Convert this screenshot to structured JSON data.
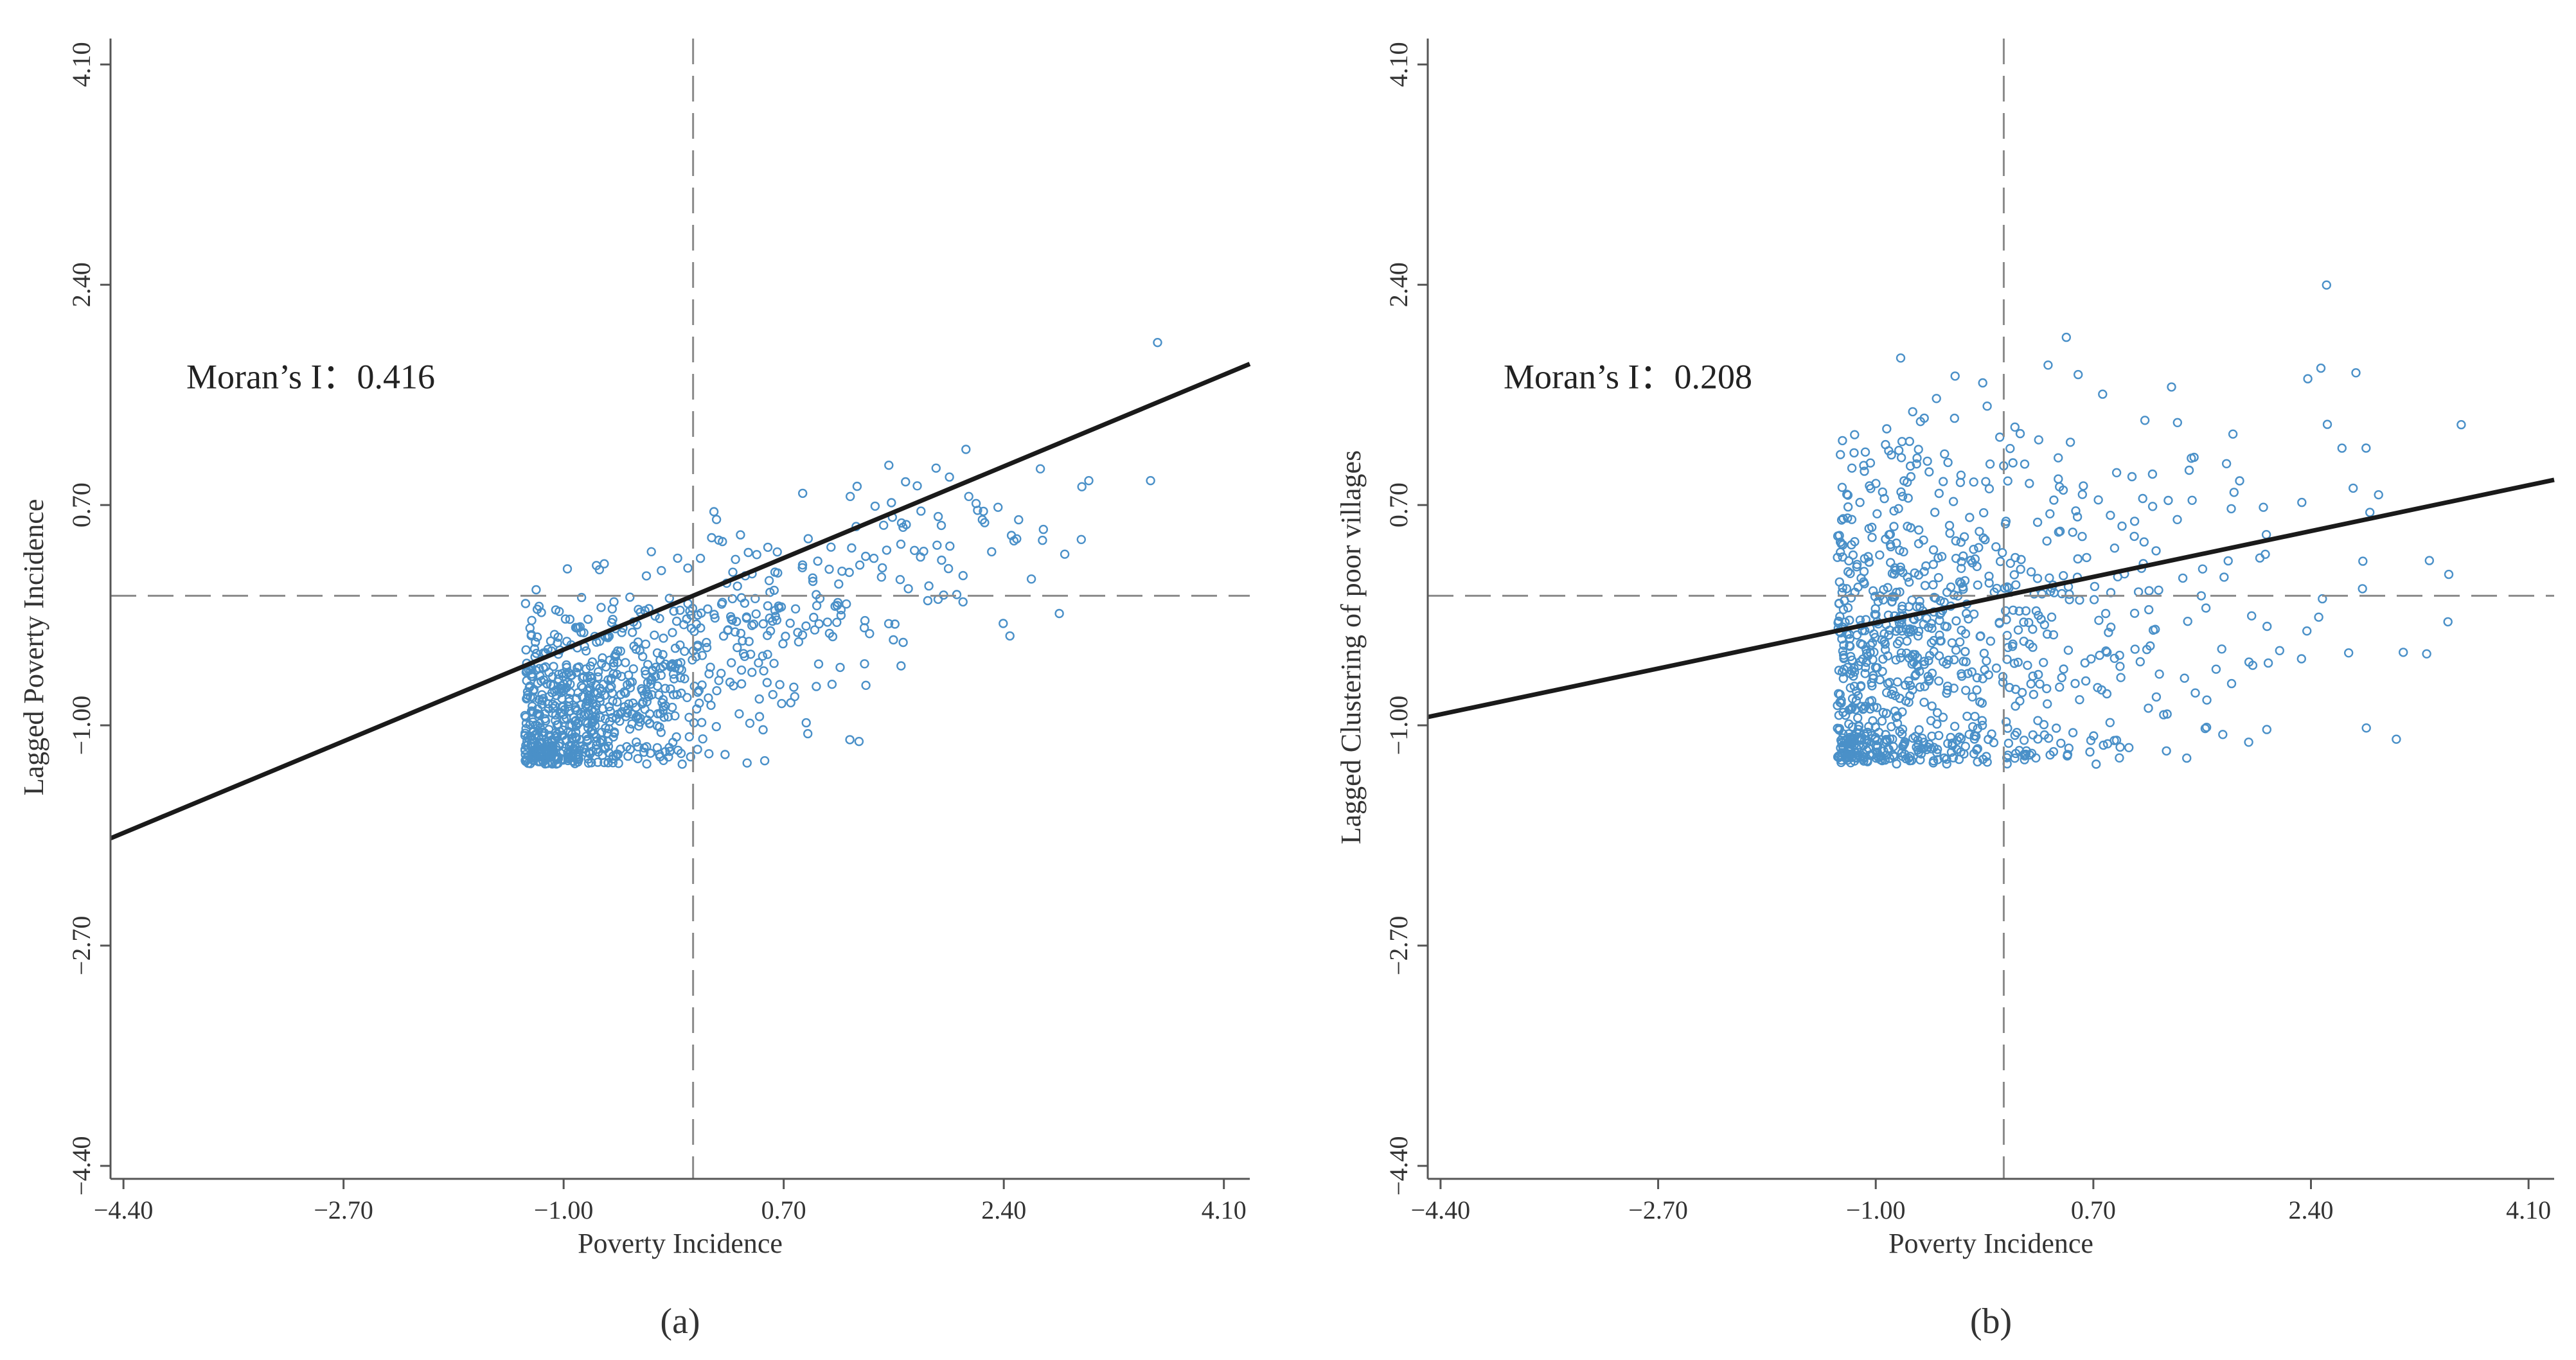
{
  "figure": {
    "panel_labels": [
      "(a)",
      "(b)"
    ]
  },
  "colors": {
    "point": "#4a90c8",
    "fit_line": "#1a1a1a",
    "axis": "#555555",
    "ref_line": "#8a8a8a",
    "text": "#333333"
  },
  "chart_data": [
    {
      "type": "scatter",
      "panel": "(a)",
      "title": "",
      "xlabel": "Poverty Incidence",
      "ylabel": "Lagged Poverty Incidence",
      "xlim": [
        -4.5,
        4.3
      ],
      "ylim": [
        -4.5,
        4.3
      ],
      "xticks": [
        "−4.40",
        "−2.70",
        "−1.00",
        "0.70",
        "2.40",
        "4.10"
      ],
      "xtick_values": [
        -4.4,
        -2.7,
        -1.0,
        0.7,
        2.4,
        4.1
      ],
      "yticks": [
        "−4.40",
        "−2.70",
        "−1.00",
        "0.70",
        "2.40",
        "4.10"
      ],
      "ytick_values": [
        -4.4,
        -2.7,
        -1.0,
        0.7,
        2.4,
        4.1
      ],
      "annotation": "Moran’s I：0.416",
      "morans_i": 0.416,
      "fit_line": {
        "slope": 0.416,
        "intercept": 0
      },
      "reference_lines": {
        "x": 0,
        "y": 0
      },
      "point_cloud": {
        "count": 900,
        "x_range": [
          -1.3,
          3.7
        ],
        "y_range": [
          -1.3,
          2.1
        ],
        "note": "dense cluster around (-0.8, -0.4), spreading upward to the right"
      }
    },
    {
      "type": "scatter",
      "panel": "(b)",
      "title": "",
      "xlabel": "Poverty Incidence",
      "ylabel": "Lagged Clustering of poor villages",
      "xlim": [
        -4.5,
        4.3
      ],
      "ylim": [
        -4.5,
        4.3
      ],
      "xticks": [
        "−4.40",
        "−2.70",
        "−1.00",
        "0.70",
        "2.40",
        "4.10"
      ],
      "xtick_values": [
        -4.4,
        -2.7,
        -1.0,
        0.7,
        2.4,
        4.1
      ],
      "yticks": [
        "−4.40",
        "−2.70",
        "−1.00",
        "0.70",
        "2.40",
        "4.10"
      ],
      "ytick_values": [
        -4.4,
        -2.7,
        -1.0,
        0.7,
        2.4,
        4.1
      ],
      "annotation": "Moran’s I：0.208",
      "morans_i": 0.208,
      "fit_line": {
        "slope": 0.208,
        "intercept": 0
      },
      "reference_lines": {
        "x": 0,
        "y": 0
      },
      "point_cloud": {
        "count": 950,
        "x_range": [
          -1.3,
          3.6
        ],
        "y_range": [
          -1.3,
          2.6
        ],
        "note": "wide vertical spread, densest near x = -1.0, y = -0.6"
      }
    }
  ]
}
